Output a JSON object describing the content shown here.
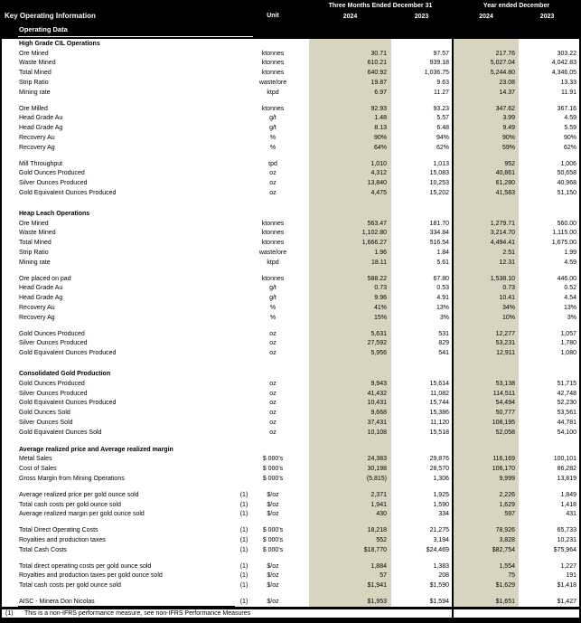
{
  "header": {
    "title": "Key Operating Information",
    "subtitle": "Operating Data",
    "unit_label": "Unit",
    "group1": "Three Months Ended December 31",
    "group2": "Year ended December",
    "years": [
      "2024",
      "2023",
      "2024",
      "2023"
    ]
  },
  "colors": {
    "shade": "#d8d4c0",
    "band": "#000000"
  },
  "sections": [
    {
      "title": "High Grade CIL Operations",
      "rows": [
        {
          "label": "Ore Mined",
          "unit": "ktonnes",
          "values": [
            "30.71",
            "97.57",
            "217.76",
            "303.22"
          ]
        },
        {
          "label": "Waste Mined",
          "unit": "ktonnes",
          "values": [
            "610.21",
            "939.18",
            "5,027.04",
            "4,042.83"
          ]
        },
        {
          "label": "Total Mined",
          "unit": "ktonnes",
          "values": [
            "640.92",
            "1,036.75",
            "5,244.80",
            "4,346.05"
          ]
        },
        {
          "label": "Strip Ratio",
          "unit": "waste/ore",
          "values": [
            "19.87",
            "9.63",
            "23.08",
            "13.33"
          ]
        },
        {
          "label": "Mining rate",
          "unit": "ktpd",
          "values": [
            "6.97",
            "11.27",
            "14.37",
            "11.91"
          ]
        },
        {
          "spacer": true
        },
        {
          "label": "Ore Milled",
          "unit": "ktonnes",
          "values": [
            "92.93",
            "93.23",
            "347.62",
            "367.16"
          ]
        },
        {
          "label": "Head Grade Au",
          "unit": "g/t",
          "values": [
            "1.48",
            "5.57",
            "3.99",
            "4.59"
          ]
        },
        {
          "label": "Head Grade Ag",
          "unit": "g/t",
          "values": [
            "8.13",
            "6.48",
            "9.49",
            "5.59"
          ]
        },
        {
          "label": "Recovery Au",
          "unit": "%",
          "values": [
            "90%",
            "94%",
            "90%",
            "90%"
          ]
        },
        {
          "label": "Recovery Ag",
          "unit": "%",
          "values": [
            "64%",
            "62%",
            "59%",
            "62%"
          ]
        },
        {
          "spacer": true
        },
        {
          "label": "Mill Throughput",
          "unit": "tpd",
          "values": [
            "1,010",
            "1,013",
            "952",
            "1,006"
          ]
        },
        {
          "label": "Gold Ounces Produced",
          "unit": "oz",
          "values": [
            "4,312",
            "15,083",
            "40,861",
            "50,658"
          ]
        },
        {
          "label": "Silver Ounces Produced",
          "unit": "oz",
          "values": [
            "13,840",
            "10,253",
            "61,280",
            "40,968"
          ]
        },
        {
          "label": "Gold Equivalent Ounces Produced",
          "unit": "oz",
          "values": [
            "4,475",
            "15,202",
            "41,583",
            "51,150"
          ]
        }
      ]
    },
    {
      "title": "Heap Leach Operations",
      "rows": [
        {
          "label": "Ore Mined",
          "unit": "ktonnes",
          "values": [
            "563.47",
            "181.70",
            "1,279.71",
            "560.00"
          ]
        },
        {
          "label": "Waste Mined",
          "unit": "ktonnes",
          "values": [
            "1,102.80",
            "334.84",
            "3,214.70",
            "1,115.00"
          ]
        },
        {
          "label": "Total Mined",
          "unit": "ktonnes",
          "values": [
            "1,666.27",
            "516.54",
            "4,494.41",
            "1,675.00"
          ]
        },
        {
          "label": "Strip Ratio",
          "unit": "waste/ore",
          "values": [
            "1.96",
            "1.84",
            "2.51",
            "1.99"
          ]
        },
        {
          "label": "Mining rate",
          "unit": "ktpd",
          "values": [
            "18.11",
            "5.61",
            "12.31",
            "4.59"
          ]
        },
        {
          "spacer": true
        },
        {
          "label": "Ore placed on pad",
          "unit": "ktonnes",
          "values": [
            "588.22",
            "67.80",
            "1,538.10",
            "446.00"
          ]
        },
        {
          "label": "Head Grade Au",
          "unit": "g/t",
          "values": [
            "0.73",
            "0.53",
            "0.73",
            "0.52"
          ]
        },
        {
          "label": "Head Grade Ag",
          "unit": "g/t",
          "values": [
            "9.96",
            "4.91",
            "10.41",
            "4.54"
          ]
        },
        {
          "label": "Recovery Au",
          "unit": "%",
          "values": [
            "41%",
            "13%",
            "34%",
            "13%"
          ]
        },
        {
          "label": "Recovery Ag",
          "unit": "%",
          "values": [
            "15%",
            "3%",
            "10%",
            "3%"
          ]
        },
        {
          "spacer": true
        },
        {
          "label": "Gold Ounces Produced",
          "unit": "oz",
          "values": [
            "5,631",
            "531",
            "12,277",
            "1,057"
          ]
        },
        {
          "label": "Silver Ounces Produced",
          "unit": "oz",
          "values": [
            "27,592",
            "829",
            "53,231",
            "1,780"
          ]
        },
        {
          "label": "Gold Equivalent Ounces Produced",
          "unit": "oz",
          "values": [
            "5,956",
            "541",
            "12,911",
            "1,080"
          ]
        }
      ]
    },
    {
      "title": "Consolidated Gold Production",
      "rows": [
        {
          "label": "Gold Ounces Produced",
          "unit": "oz",
          "values": [
            "9,943",
            "15,614",
            "53,138",
            "51,715"
          ]
        },
        {
          "label": "Silver Ounces Produced",
          "unit": "oz",
          "values": [
            "41,432",
            "11,082",
            "114,511",
            "42,748"
          ]
        },
        {
          "label": "Gold Equivalent Ounces Produced",
          "unit": "oz",
          "values": [
            "10,431",
            "15,744",
            "54,494",
            "52,230"
          ]
        },
        {
          "label": "Gold Ounces Sold",
          "unit": "oz",
          "values": [
            "9,668",
            "15,386",
            "50,777",
            "53,561"
          ]
        },
        {
          "label": "Silver Ounces Sold",
          "unit": "oz",
          "values": [
            "37,431",
            "11,120",
            "108,195",
            "44,781"
          ]
        },
        {
          "label": "Gold Equivalent Ounces Sold",
          "unit": "oz",
          "values": [
            "10,108",
            "15,518",
            "52,058",
            "54,100"
          ]
        }
      ]
    },
    {
      "title": "Average realized price and Average realized margin",
      "rows": [
        {
          "label": "Metal Sales",
          "unit": "$ 000's",
          "values": [
            "24,383",
            "29,876",
            "116,169",
            "100,101"
          ]
        },
        {
          "label": "Cost of Sales",
          "unit": "$ 000's",
          "values": [
            "30,198",
            "28,570",
            "106,170",
            "86,282"
          ]
        },
        {
          "label": "Gross Margin from Mining Operations",
          "unit": "$ 000's",
          "values": [
            "(5,815)",
            "1,306",
            "9,999",
            "13,819"
          ]
        },
        {
          "spacer": true
        },
        {
          "label": "Average realized price per gold ounce sold",
          "fn": "(1)",
          "unit": "$/oz",
          "values": [
            "2,371",
            "1,925",
            "2,226",
            "1,849"
          ]
        },
        {
          "label": "Total cash costs per gold ounce sold",
          "fn": "(1)",
          "unit": "$/oz",
          "values": [
            "1,941",
            "1,590",
            "1,629",
            "1,418"
          ]
        },
        {
          "label": "Average realized margin per gold ounce sold",
          "fn": "(1)",
          "unit": "$/oz",
          "values": [
            "430",
            "334",
            "597",
            "431"
          ]
        },
        {
          "spacer": true
        },
        {
          "label": "Total Direct Operating Costs",
          "fn": "(1)",
          "unit": "$ 000's",
          "values": [
            "18,218",
            "21,275",
            "78,926",
            "65,733"
          ]
        },
        {
          "label": "Royalties and production taxes",
          "fn": "(1)",
          "unit": "$ 000's",
          "values": [
            "552",
            "3,194",
            "3,828",
            "10,231"
          ]
        },
        {
          "label": "Total Cash Costs",
          "fn": "(1)",
          "unit": "$ 000's",
          "values": [
            "$18,770",
            "$24,469",
            "$82,754",
            "$75,964"
          ]
        },
        {
          "spacer": true
        },
        {
          "label": "Total direct operating costs per gold ounce sold",
          "fn": "(1)",
          "unit": "$/oz",
          "values": [
            "1,884",
            "1,383",
            "1,554",
            "1,227"
          ]
        },
        {
          "label": "Royalties and production taxes per gold ounce sold",
          "fn": "(1)",
          "unit": "$/oz",
          "values": [
            "57",
            "208",
            "75",
            "191"
          ]
        },
        {
          "label": "Total cash costs per gold ounce sold",
          "fn": "(1)",
          "unit": "$/oz",
          "values": [
            "$1,941",
            "$1,590",
            "$1,629",
            "$1,418"
          ]
        },
        {
          "spacer": true
        },
        {
          "label": "AISC - Minera Don Nicolas",
          "fn": "(1)",
          "unit": "$/oz",
          "values": [
            "$1,953",
            "$1,594",
            "$1,651",
            "$1,427"
          ],
          "underline": true
        }
      ]
    }
  ],
  "footnote": {
    "marker": "(1)",
    "text": "This is a non-IFRS performance measure, see non-IFRS Performance Measures"
  }
}
